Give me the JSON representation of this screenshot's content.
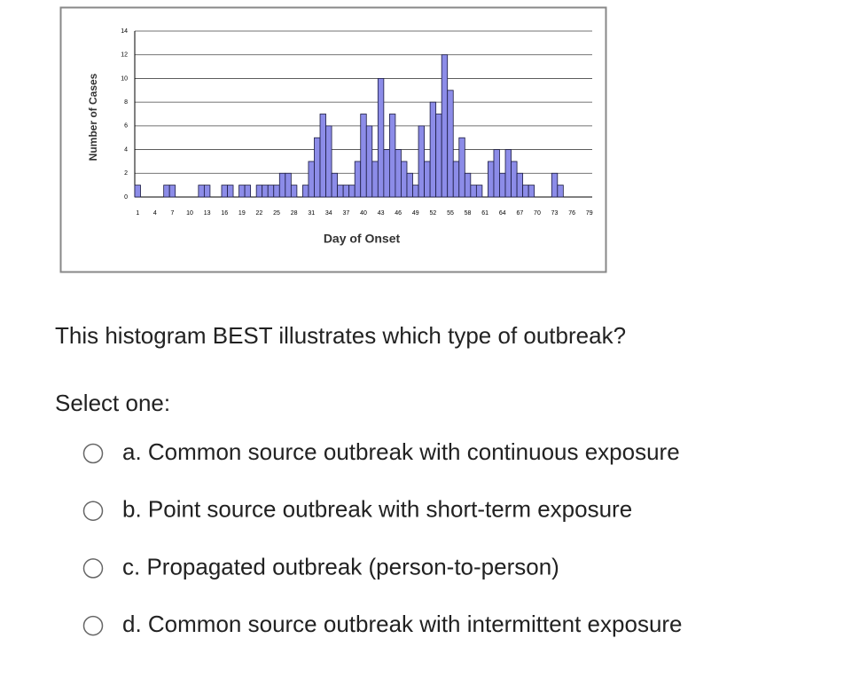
{
  "chart_data": {
    "type": "bar",
    "xlabel": "Day of Onset",
    "ylabel": "Number of Cases",
    "categories": [
      1,
      null,
      null,
      4,
      null,
      null,
      7,
      null,
      null,
      10,
      null,
      null,
      13,
      null,
      null,
      16,
      null,
      null,
      19,
      null,
      null,
      22,
      null,
      null,
      25,
      null,
      null,
      28,
      null,
      null,
      31,
      null,
      null,
      34,
      null,
      null,
      37,
      null,
      null,
      40,
      null,
      null,
      43,
      null,
      null,
      46,
      null,
      null,
      49,
      null,
      null,
      52,
      null,
      null,
      55,
      null,
      null,
      58,
      null,
      null,
      61,
      null,
      null,
      64,
      null,
      null,
      67,
      null,
      null,
      70,
      null,
      null,
      73,
      null,
      null,
      76,
      null,
      null,
      79
    ],
    "values": [
      1,
      0,
      0,
      0,
      0,
      1,
      1,
      0,
      0,
      0,
      0,
      1,
      1,
      0,
      0,
      1,
      1,
      0,
      1,
      1,
      0,
      1,
      1,
      1,
      1,
      2,
      2,
      1,
      0,
      1,
      3,
      5,
      7,
      6,
      2,
      1,
      1,
      1,
      3,
      7,
      6,
      3,
      10,
      4,
      7,
      4,
      3,
      2,
      1,
      6,
      3,
      8,
      7,
      12,
      9,
      3,
      5,
      2,
      1,
      1,
      0,
      3,
      4,
      2,
      4,
      3,
      2,
      1,
      1,
      0,
      0,
      0,
      2,
      1,
      0,
      0,
      0,
      0,
      0
    ],
    "color": "#8c8ce8",
    "ylim": [
      0,
      14
    ],
    "yticks": [
      0,
      2,
      4,
      6,
      8,
      10,
      12,
      14
    ],
    "grid": true
  },
  "question": "This histogram BEST illustrates which type of outbreak?",
  "prompt": "Select one:",
  "options": [
    "a. Common source outbreak with continuous exposure",
    "b. Point source outbreak with short-term exposure",
    "c. Propagated outbreak (person-to-person)",
    "d. Common source outbreak with intermittent exposure"
  ]
}
